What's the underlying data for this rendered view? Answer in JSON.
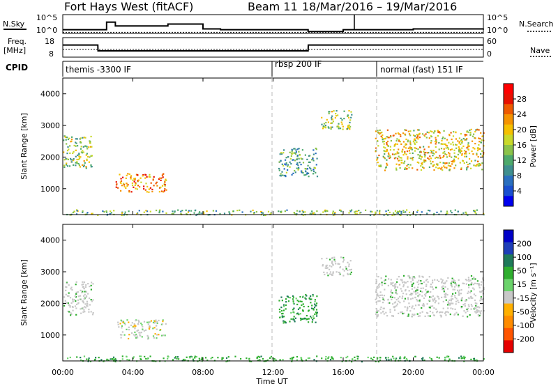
{
  "header": {
    "radar": "Fort Hays West (fitACF)",
    "beam": "Beam 11",
    "date_range": "18/Mar/2016 – 19/Mar/2016"
  },
  "summary": {
    "nsky_label": "N.Sky",
    "nsky_ticks": [
      "10^5",
      "10^0"
    ],
    "nsearch_label": "N.Search",
    "nsearch_ticks": [
      "10^5",
      "10^0"
    ],
    "freq_label_1": "Freq.",
    "freq_label_2": "[MHz]",
    "freq_ticks": [
      "18",
      "8"
    ],
    "nave_label": "Nave",
    "nave_ticks": [
      "60",
      "0"
    ],
    "cpid_label": "CPID",
    "cpid_modes": [
      {
        "label": "themis -3300 IF",
        "start_h": 0
      },
      {
        "label": "rbsp 200 IF",
        "start_h": 12
      },
      {
        "label": "normal (fast) 151 IF",
        "start_h": 18
      }
    ]
  },
  "x_axis": {
    "label": "Time UT",
    "ticks": [
      "00:00",
      "04:00",
      "08:00",
      "12:00",
      "16:00",
      "20:00",
      "00:00"
    ]
  },
  "colors": {
    "power_scale": [
      "#0000ee",
      "#1a4fd0",
      "#2a6fbf",
      "#3f8f8f",
      "#4da96c",
      "#8bc34a",
      "#c9d92a",
      "#f5c000",
      "#f59300",
      "#ee5a00",
      "#e81000",
      "#ff0000"
    ],
    "velocity_scale": [
      "#e60000",
      "#ff5500",
      "#ff8c00",
      "#ffb000",
      "#c8c8c8",
      "#6bd36b",
      "#2fae2f",
      "#1f7a5a",
      "#1f3fb8",
      "#0000c8"
    ],
    "ground_scatter": "#c8c8c8"
  },
  "chart_data": [
    {
      "type": "line",
      "title": "Fort Hays West (fitACF)  Beam 11  18/Mar/2016 – 19/Mar/2016",
      "panel": "N.Sky / N.Search",
      "xlabel": "Time UT",
      "ylabel": "N.Sky",
      "ylim_log10": [
        0,
        5
      ],
      "x_hours": [
        0,
        2,
        2.5,
        3,
        6,
        8,
        9,
        12,
        14,
        16,
        20,
        24
      ],
      "series": [
        {
          "name": "N.Sky",
          "values_log10": [
            1.0,
            1.0,
            3.0,
            2.0,
            2.5,
            1.2,
            1.0,
            1.0,
            0.5,
            1.0,
            1.2,
            1.3
          ]
        },
        {
          "name": "N.Search",
          "values_log10": [
            0.3,
            0.3,
            0.3,
            0.3,
            0.3,
            0.3,
            0.3,
            0.3,
            0.3,
            0.3,
            0.3,
            0.3
          ]
        }
      ]
    },
    {
      "type": "line",
      "panel": "Freq. / Nave",
      "xlabel": "Time UT",
      "x_hours": [
        0,
        2,
        2.01,
        14,
        14.01,
        24
      ],
      "series": [
        {
          "name": "Freq.",
          "ylim": [
            8,
            18
          ],
          "values": [
            14.2,
            14.2,
            11.2,
            11.2,
            14.2,
            14.2
          ]
        },
        {
          "name": "Nave",
          "ylim": [
            0,
            60
          ],
          "values": [
            24,
            24,
            24,
            24,
            24,
            24
          ]
        }
      ]
    },
    {
      "type": "heatmap",
      "panel": "Power",
      "xlabel": "Time UT",
      "ylabel": "Slant Range [km]",
      "ylim": [
        180,
        4500
      ],
      "yticks": [
        1000,
        2000,
        3000,
        4000
      ],
      "colorbar": {
        "label": "Power [dB]",
        "ticks": [
          4,
          8,
          12,
          16,
          20,
          24,
          28
        ],
        "range": [
          0,
          30
        ]
      },
      "regions": [
        {
          "t_start_h": 0.0,
          "t_end_h": 1.7,
          "range_km": [
            1650,
            2700
          ],
          "power_db": 14
        },
        {
          "t_start_h": 3.0,
          "t_end_h": 5.9,
          "range_km": [
            900,
            1500
          ],
          "power_db": 22
        },
        {
          "t_start_h": 12.3,
          "t_end_h": 14.5,
          "range_km": [
            1400,
            2300
          ],
          "power_db": 10
        },
        {
          "t_start_h": 14.7,
          "t_end_h": 16.5,
          "range_km": [
            2900,
            3500
          ],
          "power_db": 14
        },
        {
          "t_start_h": 17.8,
          "t_end_h": 24.0,
          "range_km": [
            1600,
            2900
          ],
          "power_db": 18
        },
        {
          "t_start_h": 0.0,
          "t_end_h": 24.0,
          "range_km": [
            180,
            350
          ],
          "power_db": 12
        }
      ]
    },
    {
      "type": "heatmap",
      "panel": "Velocity",
      "xlabel": "Time UT",
      "ylabel": "Slant Range [km]",
      "ylim": [
        180,
        4500
      ],
      "yticks": [
        1000,
        2000,
        3000,
        4000
      ],
      "colorbar": {
        "label": "Velocity [m s⁻¹]",
        "ticks": [
          200,
          100,
          50,
          15,
          -15,
          -50,
          -100,
          -200
        ]
      },
      "regions": [
        {
          "t_start_h": 0.0,
          "t_end_h": 1.7,
          "range_km": [
            1650,
            2700
          ],
          "velocity_ms": 0
        },
        {
          "t_start_h": 3.0,
          "t_end_h": 5.9,
          "range_km": [
            900,
            1500
          ],
          "velocity_ms": -30
        },
        {
          "t_start_h": 12.3,
          "t_end_h": 14.5,
          "range_km": [
            1400,
            2300
          ],
          "velocity_ms": 40
        },
        {
          "t_start_h": 14.7,
          "t_end_h": 16.5,
          "range_km": [
            2900,
            3500
          ],
          "velocity_ms": 0
        },
        {
          "t_start_h": 17.8,
          "t_end_h": 24.0,
          "range_km": [
            1600,
            2900
          ],
          "velocity_ms": 0
        },
        {
          "t_start_h": 0.0,
          "t_end_h": 24.0,
          "range_km": [
            180,
            350
          ],
          "velocity_ms": 30
        }
      ]
    }
  ]
}
